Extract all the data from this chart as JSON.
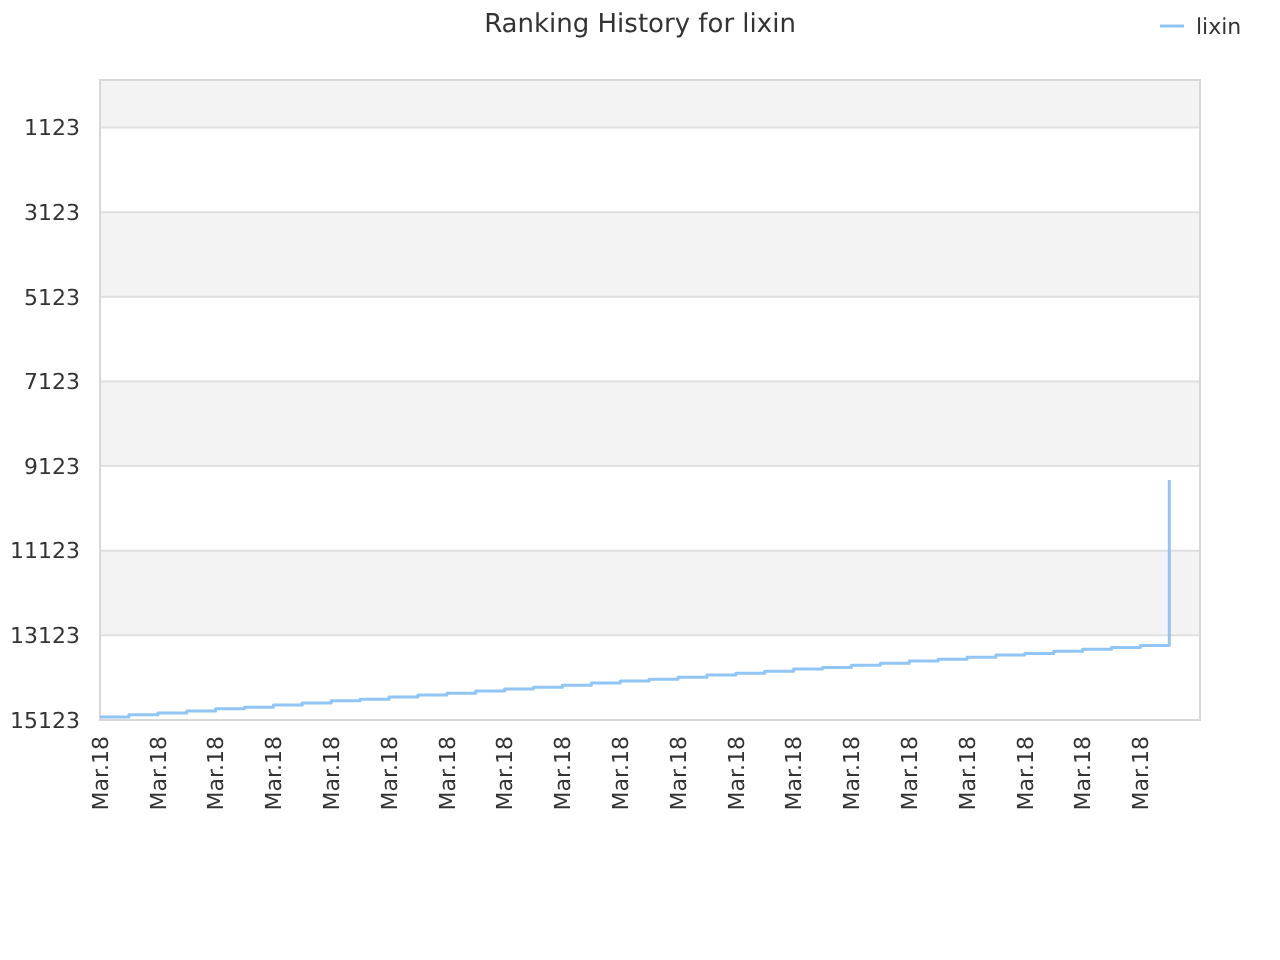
{
  "chart_data": {
    "type": "step",
    "title": "Ranking History for lixin",
    "categories": [
      "Mar.18",
      null,
      "Mar.18",
      null,
      "Mar.18",
      null,
      "Mar.18",
      null,
      "Mar.18",
      null,
      "Mar.18",
      null,
      "Mar.18",
      null,
      "Mar.18",
      null,
      "Mar.18",
      null,
      "Mar.18",
      null,
      "Mar.18",
      null,
      "Mar.18",
      null,
      "Mar.18",
      null,
      "Mar.18",
      null,
      "Mar.18",
      null,
      "Mar.18",
      null,
      "Mar.18",
      null,
      "Mar.18",
      null,
      "Mar.18",
      null
    ],
    "series": [
      {
        "name": "lixin",
        "color": "#90c5f5",
        "values": [
          15050,
          15000,
          14960,
          14910,
          14860,
          14820,
          14770,
          14720,
          14670,
          14630,
          14580,
          14530,
          14490,
          14440,
          14390,
          14350,
          14300,
          14250,
          14200,
          14160,
          14110,
          14060,
          14020,
          13970,
          13920,
          13880,
          13830,
          13780,
          13730,
          13690,
          13640,
          13590,
          13550,
          13500,
          13450,
          13410,
          13360,
          9450
        ]
      }
    ],
    "ylim": [
      15123,
      0
    ],
    "yticks": [
      1123,
      3123,
      5123,
      7123,
      9123,
      11123,
      13123,
      15123
    ],
    "grid": "y",
    "legend": "top right",
    "marker": "none",
    "line_style": "solid"
  }
}
